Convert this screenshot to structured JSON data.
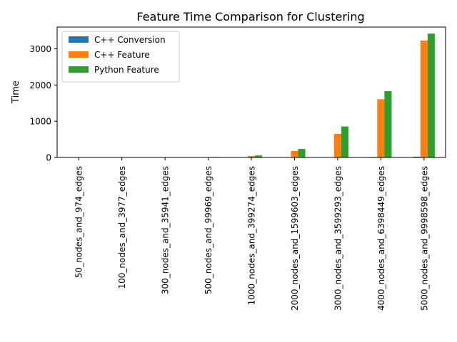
{
  "chart_data": {
    "type": "bar",
    "title": "Feature Time Comparison for Clustering",
    "xlabel": "",
    "ylabel": "Time",
    "ylim": [
      0,
      3600
    ],
    "yticks": [
      0,
      1000,
      2000,
      3000
    ],
    "grid": false,
    "legend_position": "top-left",
    "categories": [
      "50_nodes_and_974_edges",
      "100_nodes_and_3977_edges",
      "300_nodes_and_35941_edges",
      "500_nodes_and_99969_edges",
      "1000_nodes_and_399274_edges",
      "2000_nodes_and_1599603_edges",
      "3000_nodes_and_3599293_edges",
      "4000_nodes_and_6398449_edges",
      "5000_nodes_and_9998598_edges"
    ],
    "series": [
      {
        "name": "C++ Conversion",
        "color": "#1f77b4",
        "values": [
          0.05,
          0.2,
          1,
          2,
          4,
          6,
          10,
          14,
          20
        ]
      },
      {
        "name": "C++ Feature",
        "color": "#ff7f0e",
        "values": [
          0.1,
          0.5,
          3,
          8,
          40,
          180,
          650,
          1610,
          3230
        ]
      },
      {
        "name": "Python Feature",
        "color": "#2ca02c",
        "values": [
          0.2,
          1,
          5,
          12,
          55,
          235,
          855,
          1830,
          3420
        ]
      }
    ]
  }
}
